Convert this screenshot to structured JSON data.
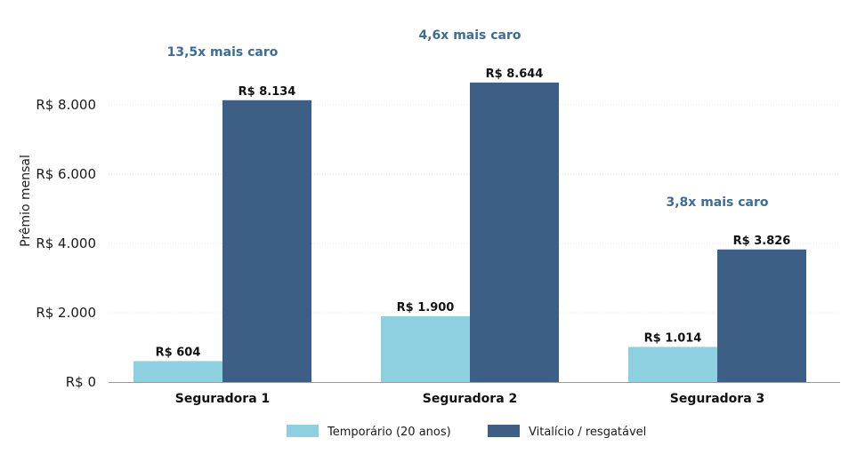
{
  "chart_data": {
    "type": "bar",
    "title": "",
    "xlabel": "",
    "ylabel": "Prêmio mensal",
    "ylim": [
      0,
      9000
    ],
    "yticks": [
      0,
      2000,
      4000,
      6000,
      8000
    ],
    "ytick_labels": [
      "R$ 0",
      "R$ 2.000",
      "R$ 4.000",
      "R$ 6.000",
      "R$ 8.000"
    ],
    "grid": true,
    "legend_position": "bottom",
    "categories": [
      "Seguradora 1",
      "Seguradora 2",
      "Seguradora 3"
    ],
    "series": [
      {
        "name": "Temporário (20 anos)",
        "color": "#8ecfe0",
        "values": [
          604,
          1900,
          1014
        ],
        "labels": [
          "R$ 604",
          "R$ 1.900",
          "R$ 1.014"
        ]
      },
      {
        "name": "Vitalício / resgatável",
        "color": "#3d5f86",
        "values": [
          8134,
          8644,
          3826
        ],
        "labels": [
          "R$ 8.134",
          "R$ 8.644",
          "R$ 3.826"
        ]
      }
    ],
    "annotations": [
      "13,5x mais caro",
      "4,6x mais caro",
      "3,8x mais caro"
    ],
    "annotation_color": "#3e6c94"
  }
}
